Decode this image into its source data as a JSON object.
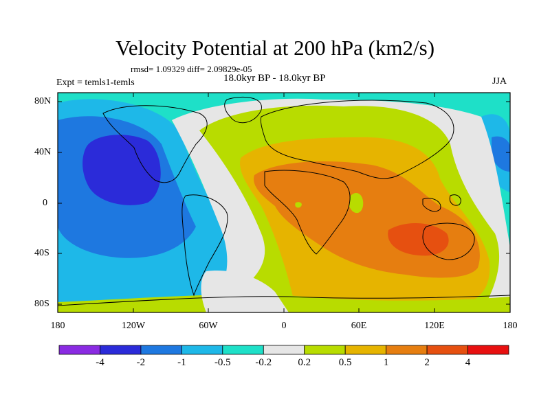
{
  "title": "Velocity Potential at 200 hPa (km2/s)",
  "stats": "rmsd= 1.09329 diff= 2.09829e-05",
  "left_label": "Expt = temls1-temls",
  "center_label": "18.0kyr BP - 18.0kyr BP",
  "right_label": "JJA",
  "lat_labels": [
    "80N",
    "40N",
    "0",
    "40S",
    "80S"
  ],
  "lon_labels": [
    "180",
    "120W",
    "60W",
    "0",
    "60E",
    "120E",
    "180"
  ],
  "colorbar": {
    "colors": [
      "#8a2be2",
      "#2b2bd9",
      "#1e78e0",
      "#1eb8e8",
      "#1ee0c8",
      "#e6e6e6",
      "#b8dc00",
      "#e6b400",
      "#e67e10",
      "#e65010",
      "#e81010"
    ],
    "labels": [
      "-4",
      "-2",
      "-1",
      "-0.5",
      "-0.2",
      "0.2",
      "0.5",
      "1",
      "2",
      "4"
    ]
  },
  "palette": {
    "ocean_light": "#1ee0c8",
    "neutral": "#e6e6e6",
    "pos1": "#b8dc00",
    "pos2": "#e6b400",
    "pos3": "#e67e10",
    "pos4": "#e65010",
    "neg1": "#1eb8e8",
    "neg2": "#1e78e0",
    "neg3": "#2b2bd9"
  }
}
